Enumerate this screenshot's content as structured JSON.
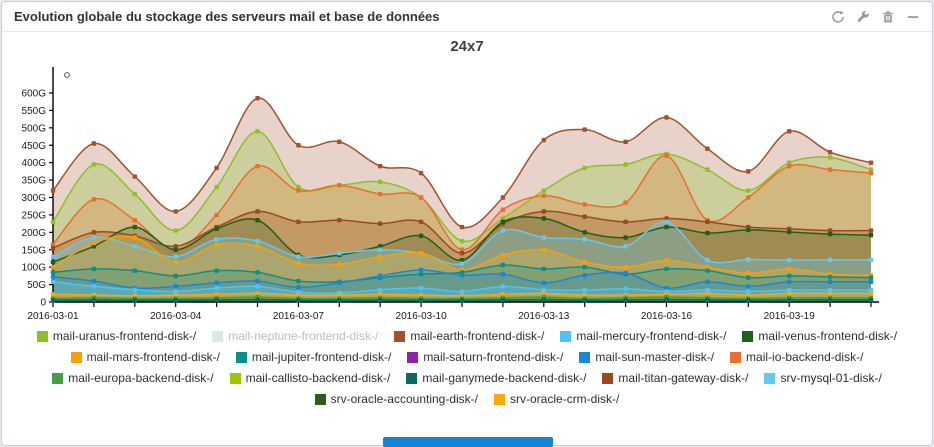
{
  "widget": {
    "title": "Evolution globale du stockage des serveurs mail et base de données",
    "header_icons": [
      "refresh",
      "wrench",
      "trash",
      "collapse"
    ],
    "accent_colors": {
      "scrollbar": "#1385d8",
      "border": "#c7ccd4"
    }
  },
  "chart_data": {
    "type": "area",
    "title": "24x7",
    "legend_position": "bottom",
    "grid": false,
    "y_unit": "G",
    "ylim": [
      0,
      620
    ],
    "y_ticks": [
      0,
      50,
      100,
      150,
      200,
      250,
      300,
      350,
      400,
      450,
      500,
      550,
      600
    ],
    "x": [
      "2016-03-01",
      "2016-03-02",
      "2016-03-03",
      "2016-03-04",
      "2016-03-05",
      "2016-03-06",
      "2016-03-07",
      "2016-03-08",
      "2016-03-09",
      "2016-03-10",
      "2016-03-11",
      "2016-03-12",
      "2016-03-13",
      "2016-03-14",
      "2016-03-15",
      "2016-03-16",
      "2016-03-17",
      "2016-03-18",
      "2016-03-19",
      "2016-03-20",
      "2016-03-21"
    ],
    "x_tick_label_every": 3,
    "hidden_series": [
      "mail-neptune-frontend-disk-/"
    ],
    "series": [
      {
        "name": "mail-earth-frontend-disk-/",
        "color": "#A3512B",
        "fill": "rgba(163,81,43,0.25)",
        "values": [
          320,
          455,
          360,
          260,
          385,
          585,
          450,
          460,
          390,
          370,
          215,
          300,
          465,
          495,
          460,
          530,
          440,
          375,
          490,
          430,
          400
        ]
      },
      {
        "name": "mail-uranus-frontend-disk-/",
        "color": "#8FBF26",
        "fill": "rgba(150,200,60,0.33)",
        "values": [
          230,
          395,
          310,
          205,
          330,
          490,
          330,
          335,
          345,
          300,
          175,
          240,
          320,
          385,
          395,
          425,
          380,
          320,
          400,
          415,
          380
        ]
      },
      {
        "name": "mail-io-backend-disk-/",
        "color": "#E96F2E",
        "fill": "rgba(233,111,46,0.25)",
        "values": [
          165,
          295,
          235,
          150,
          250,
          390,
          320,
          335,
          310,
          300,
          150,
          265,
          305,
          280,
          285,
          420,
          235,
          300,
          390,
          380,
          370
        ]
      },
      {
        "name": "mail-titan-gateway-disk-/",
        "color": "#9A4A1E",
        "fill": "rgba(154,74,30,0.28)",
        "values": [
          155,
          200,
          190,
          160,
          215,
          260,
          230,
          235,
          225,
          230,
          140,
          225,
          260,
          245,
          230,
          240,
          230,
          215,
          210,
          205,
          205
        ]
      },
      {
        "name": "mail-venus-frontend-disk-/",
        "color": "#1C611C",
        "fill": "rgba(28,97,28,0.22)",
        "values": [
          115,
          160,
          215,
          150,
          210,
          235,
          135,
          135,
          160,
          190,
          120,
          230,
          240,
          200,
          185,
          215,
          198,
          207,
          201,
          195,
          192
        ]
      },
      {
        "name": "srv-mysql-01-disk-/",
        "color": "#63C9F2",
        "fill": "rgba(99,201,242,0.30)",
        "values": [
          130,
          185,
          160,
          130,
          180,
          175,
          130,
          140,
          150,
          140,
          110,
          205,
          185,
          180,
          160,
          230,
          120,
          122,
          120,
          121,
          121
        ]
      },
      {
        "name": "mail-mars-frontend-disk-/",
        "color": "#F5A009",
        "fill": "rgba(245,185,60,0.30)",
        "values": [
          100,
          170,
          185,
          115,
          165,
          160,
          112,
          108,
          130,
          140,
          92,
          135,
          150,
          115,
          100,
          120,
          100,
          83,
          95,
          80,
          77
        ]
      },
      {
        "name": "mail-jupiter-frontend-disk-/",
        "color": "#0A9187",
        "fill": "rgba(10,145,135,0.25)",
        "values": [
          85,
          95,
          90,
          75,
          90,
          85,
          60,
          58,
          70,
          80,
          85,
          106,
          95,
          100,
          80,
          95,
          90,
          70,
          75,
          72,
          70
        ]
      },
      {
        "name": "mail-sun-master-disk-/",
        "color": "#1787D8",
        "fill": "rgba(23,135,216,0.25)",
        "values": [
          72,
          60,
          40,
          45,
          55,
          60,
          42,
          55,
          75,
          92,
          77,
          80,
          55,
          77,
          83,
          40,
          58,
          45,
          58,
          58,
          58
        ]
      },
      {
        "name": "mail-mercury-frontend-disk-/",
        "color": "#4FC4F2",
        "fill": "rgba(79,196,242,0.35)",
        "values": [
          58,
          45,
          35,
          30,
          40,
          45,
          28,
          26,
          35,
          40,
          30,
          45,
          35,
          34,
          38,
          30,
          34,
          30,
          34,
          34,
          34
        ]
      },
      {
        "name": "srv-oracle-crm-disk-/",
        "color": "#F9A70B",
        "fill": "rgba(249,167,11,0.50)",
        "values": [
          22,
          20,
          18,
          20,
          22,
          25,
          20,
          20,
          22,
          20,
          18,
          22,
          25,
          20,
          20,
          22,
          25,
          20,
          25,
          25,
          25
        ]
      },
      {
        "name": "mail-europa-backend-disk-/",
        "color": "#3FA045",
        "fill": "rgba(63,160,69,0.50)",
        "values": [
          10,
          12,
          10,
          10,
          12,
          14,
          10,
          10,
          12,
          10,
          10,
          12,
          14,
          10,
          12,
          14,
          12,
          10,
          12,
          12,
          12
        ]
      },
      {
        "name": "mail-ganymede-backend-disk-/",
        "color": "#0A6B5E",
        "fill": "rgba(10,107,94,0.50)",
        "values": [
          5,
          6,
          5,
          5,
          6,
          7,
          5,
          5,
          6,
          5,
          5,
          6,
          7,
          5,
          6,
          7,
          6,
          5,
          6,
          6,
          6
        ]
      }
    ]
  },
  "legend": {
    "rows": [
      [
        {
          "label": "mail-uranus-frontend-disk-/",
          "color": "#8FBF26",
          "disabled": false
        },
        {
          "label": "mail-neptune-frontend-disk-/",
          "color": "#D8EAE4",
          "disabled": true
        },
        {
          "label": "mail-earth-frontend-disk-/",
          "color": "#A3512B",
          "disabled": false
        },
        {
          "label": "mail-mercury-frontend-disk-/",
          "color": "#4FC4F2",
          "disabled": false
        },
        {
          "label": "mail-venus-frontend-disk-/",
          "color": "#1C611C",
          "disabled": false
        }
      ],
      [
        {
          "label": "mail-mars-frontend-disk-/",
          "color": "#F5A009",
          "disabled": false
        },
        {
          "label": "mail-jupiter-frontend-disk-/",
          "color": "#0A9187",
          "disabled": false
        },
        {
          "label": "mail-saturn-frontend-disk-/",
          "color": "#8E24AA",
          "disabled": false
        },
        {
          "label": "mail-sun-master-disk-/",
          "color": "#1787D8",
          "disabled": false
        },
        {
          "label": "mail-io-backend-disk-/",
          "color": "#E96F2E",
          "disabled": false
        }
      ],
      [
        {
          "label": "mail-europa-backend-disk-/",
          "color": "#3FA045",
          "disabled": false
        },
        {
          "label": "mail-callisto-backend-disk-/",
          "color": "#9DC702",
          "disabled": false
        },
        {
          "label": "mail-ganymede-backend-disk-/",
          "color": "#0A6B5E",
          "disabled": false
        },
        {
          "label": "mail-titan-gateway-disk-/",
          "color": "#9A4A1E",
          "disabled": false
        },
        {
          "label": "srv-mysql-01-disk-/",
          "color": "#63C9F2",
          "disabled": false
        }
      ],
      [
        {
          "label": "srv-oracle-accounting-disk-/",
          "color": "#2F5D17",
          "disabled": false
        },
        {
          "label": "srv-oracle-crm-disk-/",
          "color": "#F9A70B",
          "disabled": false
        }
      ]
    ]
  }
}
